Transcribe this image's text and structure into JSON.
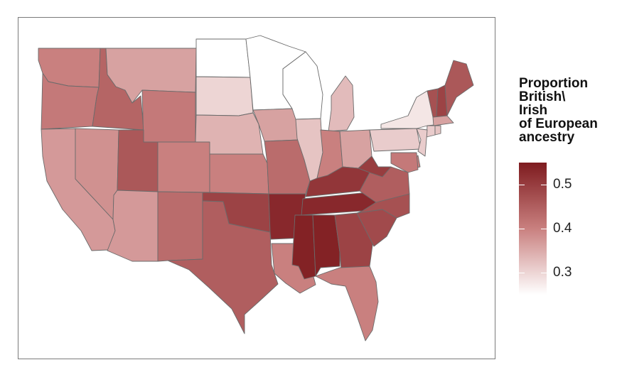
{
  "legend": {
    "title_lines": [
      "Proportion",
      "British\\",
      "Irish",
      "of European",
      "ancestry"
    ],
    "range": [
      0.25,
      0.55
    ],
    "ticks": [
      {
        "value": 0.5,
        "label": "0.5"
      },
      {
        "value": 0.4,
        "label": "0.4"
      },
      {
        "value": 0.3,
        "label": "0.3"
      }
    ],
    "color_low": "#ffffff",
    "color_high": "#7e1b1f"
  },
  "states": [
    {
      "name": "Washington",
      "value": 0.4
    },
    {
      "name": "Oregon",
      "value": 0.41
    },
    {
      "name": "California",
      "value": 0.37
    },
    {
      "name": "Idaho",
      "value": 0.44
    },
    {
      "name": "Nevada",
      "value": 0.38
    },
    {
      "name": "Montana",
      "value": 0.36
    },
    {
      "name": "Wyoming",
      "value": 0.41
    },
    {
      "name": "Utah",
      "value": 0.46
    },
    {
      "name": "Arizona",
      "value": 0.37
    },
    {
      "name": "Colorado",
      "value": 0.4
    },
    {
      "name": "New Mexico",
      "value": 0.43
    },
    {
      "name": "North Dakota",
      "value": 0.25
    },
    {
      "name": "South Dakota",
      "value": 0.3
    },
    {
      "name": "Nebraska",
      "value": 0.34
    },
    {
      "name": "Kansas",
      "value": 0.4
    },
    {
      "name": "Oklahoma",
      "value": 0.49
    },
    {
      "name": "Texas",
      "value": 0.45
    },
    {
      "name": "Minnesota",
      "value": 0.25
    },
    {
      "name": "Iowa",
      "value": 0.36
    },
    {
      "name": "Missouri",
      "value": 0.43
    },
    {
      "name": "Arkansas",
      "value": 0.53
    },
    {
      "name": "Louisiana",
      "value": 0.4
    },
    {
      "name": "Wisconsin",
      "value": 0.25
    },
    {
      "name": "Illinois",
      "value": 0.32
    },
    {
      "name": "Michigan",
      "value": 0.33
    },
    {
      "name": "Indiana",
      "value": 0.4
    },
    {
      "name": "Ohio",
      "value": 0.36
    },
    {
      "name": "Kentucky",
      "value": 0.51
    },
    {
      "name": "Tennessee",
      "value": 0.53
    },
    {
      "name": "Mississippi",
      "value": 0.54
    },
    {
      "name": "Alabama",
      "value": 0.54
    },
    {
      "name": "Georgia",
      "value": 0.49
    },
    {
      "name": "Florida",
      "value": 0.4
    },
    {
      "name": "South Carolina",
      "value": 0.48
    },
    {
      "name": "North Carolina",
      "value": 0.47
    },
    {
      "name": "Virginia",
      "value": 0.45
    },
    {
      "name": "West Virginia",
      "value": 0.5
    },
    {
      "name": "Pennsylvania",
      "value": 0.31
    },
    {
      "name": "New York",
      "value": 0.28
    },
    {
      "name": "Vermont",
      "value": 0.47
    },
    {
      "name": "New Hampshire",
      "value": 0.49
    },
    {
      "name": "Maine",
      "value": 0.46
    },
    {
      "name": "Massachusetts",
      "value": 0.36
    },
    {
      "name": "Connecticut",
      "value": 0.31
    },
    {
      "name": "Rhode Island",
      "value": 0.32
    },
    {
      "name": "New Jersey",
      "value": 0.31
    },
    {
      "name": "Delaware",
      "value": 0.4
    },
    {
      "name": "Maryland",
      "value": 0.41
    }
  ]
}
